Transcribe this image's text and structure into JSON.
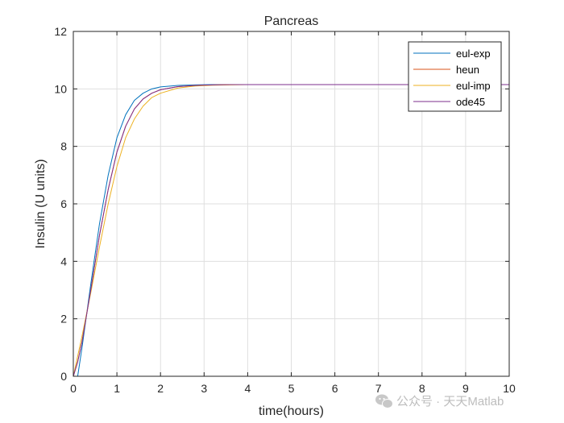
{
  "chart_data": {
    "type": "line",
    "title": "Pancreas",
    "xlabel": "time(hours)",
    "ylabel": "Insulin (U units)",
    "xlim": [
      0,
      10
    ],
    "ylim": [
      0,
      12
    ],
    "xticks": [
      "0",
      "1",
      "2",
      "3",
      "4",
      "5",
      "6",
      "7",
      "8",
      "9",
      "10"
    ],
    "yticks": [
      "0",
      "2",
      "4",
      "6",
      "8",
      "10",
      "12"
    ],
    "grid": true,
    "legend_position": "top-right",
    "series": [
      {
        "name": "eul-exp",
        "color": "#0072bd",
        "x": [
          0,
          0.1,
          0.2,
          0.4,
          0.6,
          0.8,
          1.0,
          1.2,
          1.4,
          1.6,
          1.8,
          2.0,
          2.4,
          2.8,
          3.2,
          3.6,
          4,
          6,
          8,
          10
        ],
        "y": [
          0,
          0.0,
          1.0,
          3.2,
          5.3,
          7.0,
          8.3,
          9.1,
          9.6,
          9.85,
          10.0,
          10.07,
          10.12,
          10.14,
          10.15,
          10.15,
          10.15,
          10.15,
          10.15,
          10.15
        ]
      },
      {
        "name": "heun",
        "color": "#d95319",
        "x": [
          0,
          0.1,
          0.2,
          0.4,
          0.6,
          0.8,
          1.0,
          1.2,
          1.4,
          1.6,
          1.8,
          2.0,
          2.4,
          2.8,
          3.2,
          3.6,
          4,
          6,
          8,
          10
        ],
        "y": [
          0,
          0.5,
          1.2,
          3.0,
          4.9,
          6.5,
          7.8,
          8.7,
          9.3,
          9.65,
          9.85,
          9.97,
          10.08,
          10.12,
          10.14,
          10.15,
          10.15,
          10.15,
          10.15,
          10.15
        ]
      },
      {
        "name": "eul-imp",
        "color": "#edb120",
        "x": [
          0,
          0.1,
          0.2,
          0.4,
          0.6,
          0.8,
          1.0,
          1.2,
          1.4,
          1.6,
          1.8,
          2.0,
          2.4,
          2.8,
          3.2,
          3.6,
          4,
          6,
          8,
          10
        ],
        "y": [
          0,
          0.7,
          1.4,
          2.9,
          4.5,
          6.0,
          7.3,
          8.3,
          8.95,
          9.4,
          9.7,
          9.85,
          10.03,
          10.1,
          10.13,
          10.14,
          10.15,
          10.15,
          10.15,
          10.15
        ]
      },
      {
        "name": "ode45",
        "color": "#7e2f8e",
        "x": [
          0,
          0.1,
          0.2,
          0.4,
          0.6,
          0.8,
          1.0,
          1.2,
          1.4,
          1.6,
          1.8,
          2.0,
          2.4,
          2.8,
          3.2,
          3.6,
          4,
          6,
          8,
          10
        ],
        "y": [
          0,
          0.5,
          1.2,
          3.0,
          4.9,
          6.5,
          7.8,
          8.7,
          9.3,
          9.65,
          9.85,
          9.97,
          10.08,
          10.12,
          10.14,
          10.15,
          10.15,
          10.15,
          10.15,
          10.15
        ]
      }
    ]
  },
  "watermark": {
    "icon": "wechat-icon",
    "text": "公众号 · 天天Matlab"
  }
}
